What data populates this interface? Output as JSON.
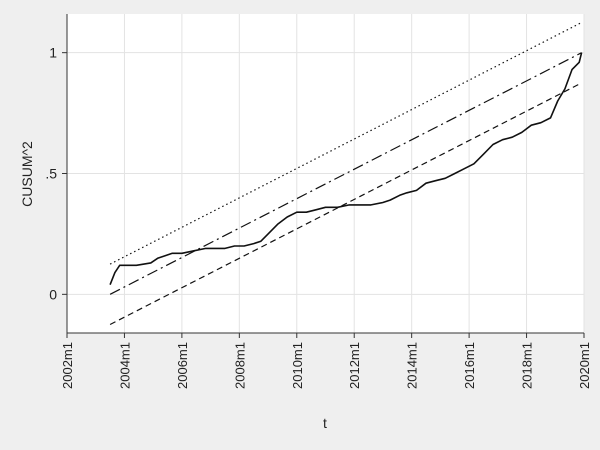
{
  "chart_data": {
    "type": "line",
    "xlabel": "t",
    "ylabel": "CUSUM^2",
    "xlim": [
      "2002m1",
      "2020m1"
    ],
    "ylim": [
      -0.16,
      1.16
    ],
    "x_ticks": [
      "2002m1",
      "2004m1",
      "2006m1",
      "2008m1",
      "2010m1",
      "2012m1",
      "2014m1",
      "2016m1",
      "2018m1",
      "2020m1"
    ],
    "y_ticks": [
      0,
      0.5,
      1
    ],
    "y_tick_labels": [
      "0",
      ".5",
      "1"
    ],
    "grid": true,
    "legend": "none",
    "series": [
      {
        "style": "solid",
        "x": [
          "2003m7",
          "2003m9",
          "2003m11",
          "2004m3",
          "2004m6",
          "2004m12",
          "2005m3",
          "2005m6",
          "2005m9",
          "2006m1",
          "2006m6",
          "2006m11",
          "2007m3",
          "2007m7",
          "2007m11",
          "2008m3",
          "2008m7",
          "2008m10",
          "2009m1",
          "2009m5",
          "2009m9",
          "2010m1",
          "2010m5",
          "2010m9",
          "2011m1",
          "2011m6",
          "2011m11",
          "2012m3",
          "2012m8",
          "2013m1",
          "2013m4",
          "2013m8",
          "2013m11",
          "2014m3",
          "2014m7",
          "2014m11",
          "2015m3",
          "2015m7",
          "2015m11",
          "2016m3",
          "2016m7",
          "2016m11",
          "2017m3",
          "2017m7",
          "2017m11",
          "2018m3",
          "2018m7",
          "2018m11",
          "2019m2",
          "2019m5",
          "2019m8",
          "2019m11",
          "2019m12"
        ],
        "y": [
          0.04,
          0.09,
          0.12,
          0.12,
          0.12,
          0.13,
          0.15,
          0.16,
          0.17,
          0.17,
          0.18,
          0.19,
          0.19,
          0.19,
          0.2,
          0.2,
          0.21,
          0.22,
          0.25,
          0.29,
          0.32,
          0.34,
          0.34,
          0.35,
          0.36,
          0.36,
          0.37,
          0.37,
          0.37,
          0.38,
          0.39,
          0.41,
          0.42,
          0.43,
          0.46,
          0.47,
          0.48,
          0.5,
          0.52,
          0.54,
          0.58,
          0.62,
          0.64,
          0.65,
          0.67,
          0.7,
          0.71,
          0.73,
          0.8,
          0.85,
          0.93,
          0.96,
          1.0
        ]
      },
      {
        "style": "dotted",
        "x": [
          "2003m7",
          "2019m12"
        ],
        "y": [
          0.125,
          1.125
        ]
      },
      {
        "style": "dashdot",
        "x": [
          "2003m7",
          "2019m12"
        ],
        "y": [
          0.0,
          1.0
        ]
      },
      {
        "style": "dashed",
        "x": [
          "2003m7",
          "2019m12"
        ],
        "y": [
          -0.125,
          0.875
        ]
      }
    ]
  }
}
